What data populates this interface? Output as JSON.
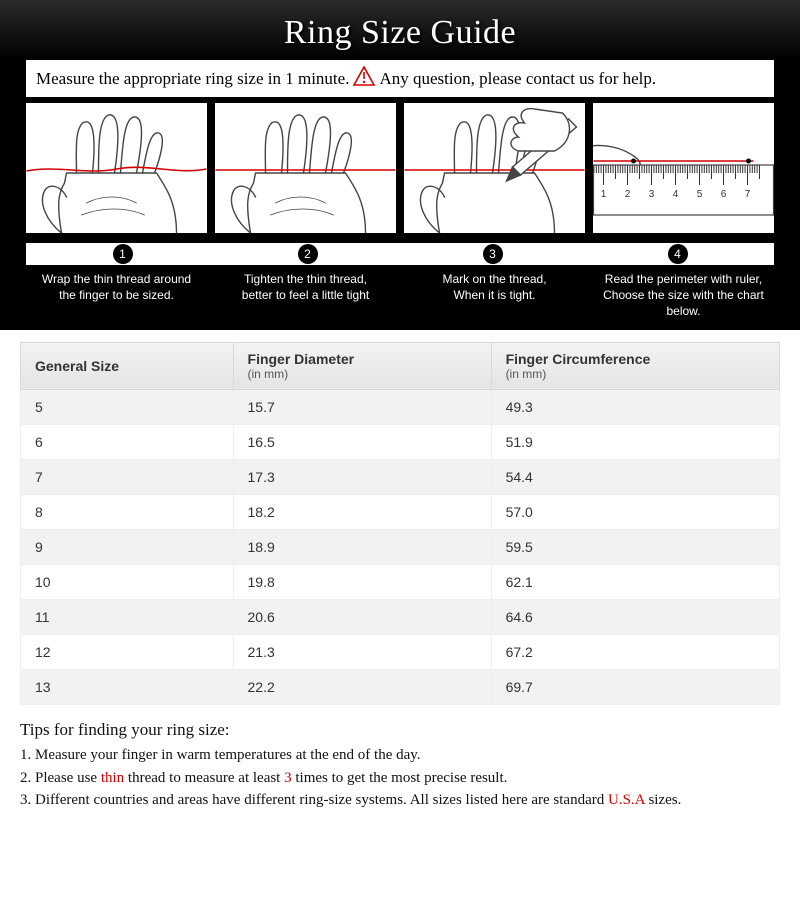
{
  "title": "Ring Size Guide",
  "instruction": {
    "before": "Measure the appropriate ring size in 1 minute.",
    "after": "Any question, please contact us for help."
  },
  "alert_color": "#d40000",
  "thread_color": "#d40000",
  "hand_stroke": "#444444",
  "steps": {
    "numbers": [
      "1",
      "2",
      "3",
      "4"
    ],
    "captions": [
      [
        "Wrap the thin thread around",
        "the finger to be sized."
      ],
      [
        "Tighten the thin thread,",
        "better to feel a little tight"
      ],
      [
        "Mark on the thread,",
        "When it is tight."
      ],
      [
        "Read the perimeter with ruler,",
        "Choose the size with the chart below."
      ]
    ]
  },
  "ruler": {
    "labels": [
      "1",
      "2",
      "3",
      "4",
      "5",
      "6",
      "7"
    ]
  },
  "table": {
    "columns": [
      {
        "label": "General Size",
        "sub": ""
      },
      {
        "label": "Finger Diameter",
        "sub": "(in mm)"
      },
      {
        "label": "Finger Circumference",
        "sub": "(in mm)"
      }
    ],
    "col_widths": [
      "28%",
      "34%",
      "38%"
    ],
    "rows": [
      [
        "5",
        "15.7",
        "49.3"
      ],
      [
        "6",
        "16.5",
        "51.9"
      ],
      [
        "7",
        "17.3",
        "54.4"
      ],
      [
        "8",
        "18.2",
        "57.0"
      ],
      [
        "9",
        "18.9",
        "59.5"
      ],
      [
        "10",
        "19.8",
        "62.1"
      ],
      [
        "11",
        "20.6",
        "64.6"
      ],
      [
        "12",
        "21.3",
        "67.2"
      ],
      [
        "13",
        "22.2",
        "69.7"
      ]
    ]
  },
  "tips": {
    "heading": "Tips for finding your ring size:",
    "items": [
      {
        "prefix": "1. ",
        "segments": [
          {
            "t": "Measure your finger in warm temperatures at the end of the day."
          }
        ]
      },
      {
        "prefix": "2. ",
        "segments": [
          {
            "t": "Please use "
          },
          {
            "t": "thin",
            "red": true
          },
          {
            "t": " thread to measure at least "
          },
          {
            "t": "3",
            "red": true
          },
          {
            "t": " times to get the most precise result."
          }
        ]
      },
      {
        "prefix": "3. ",
        "segments": [
          {
            "t": "Different countries and areas have different ring-size systems. All sizes listed here are standard "
          },
          {
            "t": "U.S.A",
            "red": true
          },
          {
            "t": " sizes."
          }
        ]
      }
    ]
  }
}
